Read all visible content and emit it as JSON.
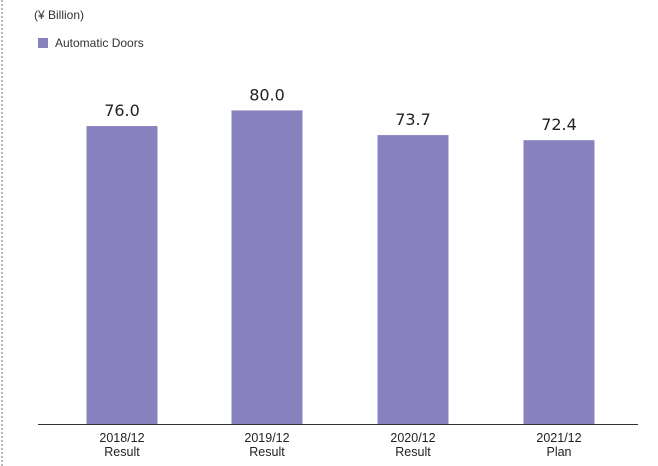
{
  "chart_data": {
    "type": "bar",
    "unit": "(¥ Billion)",
    "categories": [
      [
        "2018/12",
        "Result"
      ],
      [
        "2019/12",
        "Result"
      ],
      [
        "2020/12",
        "Result"
      ],
      [
        "2021/12",
        "Plan"
      ]
    ],
    "series": [
      {
        "name": "Automatic Doors",
        "color": "#8781bd",
        "values": [
          76.0,
          80.0,
          73.7,
          72.4
        ],
        "labels": [
          "76.0",
          "80.0",
          "73.7",
          "72.4"
        ]
      }
    ],
    "ylim": [
      0,
      100
    ],
    "grid": false,
    "legend": "top-left"
  }
}
